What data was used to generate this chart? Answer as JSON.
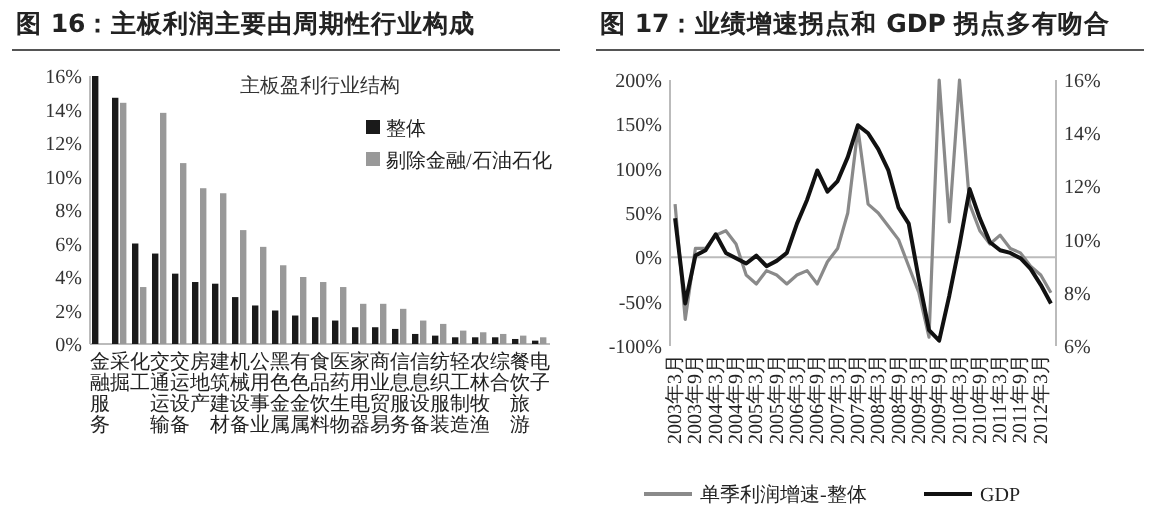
{
  "chart_data": [
    {
      "type": "bar",
      "title": "图 16：主板利润主要由周期性行业构成",
      "subtitle": "主板盈利行业结构",
      "categories": [
        "金融服务",
        "采掘",
        "化工",
        "交通运输",
        "交运设备",
        "房地产",
        "建筑建材",
        "机械设备",
        "公用事业",
        "黑色金属",
        "有色金属",
        "食品饮料",
        "医药生物",
        "家用电器",
        "商业贸易",
        "信息服务",
        "信息设备",
        "纺织服装",
        "轻工制造",
        "农林牧渔",
        "综合",
        "餐饮旅游",
        "电子"
      ],
      "series": [
        {
          "name": "整体",
          "color": "#1a1a1a",
          "values": [
            16.0,
            14.7,
            6.0,
            5.4,
            4.2,
            3.7,
            3.6,
            2.8,
            2.3,
            2.0,
            1.7,
            1.6,
            1.4,
            1.0,
            1.0,
            0.9,
            0.6,
            0.5,
            0.4,
            0.4,
            0.4,
            0.3,
            0.2
          ]
        },
        {
          "name": "剔除金融/石油石化",
          "color": "#999999",
          "values": [
            null,
            14.4,
            3.4,
            13.8,
            10.8,
            9.3,
            9.0,
            6.8,
            5.8,
            4.7,
            4.0,
            3.7,
            3.4,
            2.4,
            2.4,
            2.1,
            1.4,
            1.2,
            0.8,
            0.7,
            0.6,
            0.5,
            0.4
          ]
        }
      ],
      "ylim": [
        0,
        16
      ],
      "yticks": [
        {
          "value": 0,
          "label": "0%"
        },
        {
          "value": 2,
          "label": "2%"
        },
        {
          "value": 4,
          "label": "4%"
        },
        {
          "value": 6,
          "label": "6%"
        },
        {
          "value": 8,
          "label": "8%"
        },
        {
          "value": 10,
          "label": "10%"
        },
        {
          "value": 12,
          "label": "12%"
        },
        {
          "value": 14,
          "label": "14%"
        },
        {
          "value": 16,
          "label": "16%"
        }
      ],
      "legend": "top right"
    },
    {
      "type": "line",
      "title": "图 17：业绩增速拐点和 GDP 拐点多有吻合",
      "categories": [
        "2003年3月",
        null,
        "2003年9月",
        null,
        "2004年3月",
        null,
        "2004年9月",
        null,
        "2005年3月",
        null,
        "2005年9月",
        null,
        "2006年3月",
        null,
        "2006年9月",
        null,
        "2007年3月",
        null,
        "2007年9月",
        null,
        "2008年3月",
        null,
        "2008年9月",
        null,
        "2009年3月",
        null,
        "2009年9月",
        null,
        "2010年3月",
        null,
        "2010年9月",
        null,
        "2011年3月",
        null,
        "2011年9月",
        null,
        "2012年3月",
        null
      ],
      "series": [
        {
          "name": "单季利润增速-整体",
          "color": "#8a8a8a",
          "values": [
            60,
            -70,
            10,
            10,
            25,
            30,
            15,
            -20,
            -30,
            -15,
            -20,
            -30,
            -20,
            -15,
            -30,
            -5,
            10,
            50,
            145,
            60,
            50,
            35,
            20,
            -10,
            -40,
            -90,
            200,
            40,
            200,
            60,
            30,
            15,
            25,
            10,
            5,
            -10,
            -20,
            -40
          ]
        },
        {
          "name": "GDP",
          "color": "#111111",
          "axis": "y2",
          "values": [
            10.8,
            7.6,
            9.4,
            9.6,
            10.2,
            9.5,
            9.3,
            9.1,
            9.4,
            9.0,
            9.2,
            9.5,
            10.6,
            11.5,
            12.6,
            11.8,
            12.2,
            13.1,
            14.3,
            14.0,
            13.4,
            12.6,
            11.2,
            10.6,
            8.5,
            6.6,
            6.2,
            7.9,
            9.8,
            11.9,
            10.8,
            9.9,
            9.6,
            9.5,
            9.3,
            8.9,
            8.3,
            7.6
          ]
        }
      ],
      "ylim": [
        -100,
        200
      ],
      "yticks": [
        {
          "value": -100,
          "label": "-100%"
        },
        {
          "value": -50,
          "label": "-50%"
        },
        {
          "value": 0,
          "label": "0%"
        },
        {
          "value": 50,
          "label": "50%"
        },
        {
          "value": 100,
          "label": "100%"
        },
        {
          "value": 150,
          "label": "150%"
        },
        {
          "value": 200,
          "label": "200%"
        }
      ],
      "y2lim": [
        6,
        16
      ],
      "y2ticks": [
        {
          "value": 6,
          "label": "6%"
        },
        {
          "value": 8,
          "label": "8%"
        },
        {
          "value": 10,
          "label": "10%"
        },
        {
          "value": 12,
          "label": "12%"
        },
        {
          "value": 14,
          "label": "14%"
        },
        {
          "value": 16,
          "label": "16%"
        }
      ],
      "legend": "bottom"
    }
  ]
}
